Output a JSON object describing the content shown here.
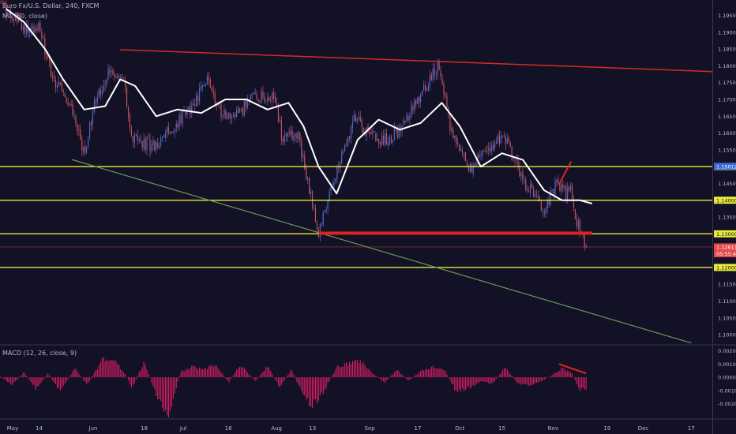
{
  "header": {
    "title": "Euro Fx/U.S. Dollar, 240, FXCM",
    "ma_label": "MA (50, close)",
    "macd_label": "MACD (12, 26, close, 9)"
  },
  "colors": {
    "background": "#131126",
    "candle_up": "#4f6cc7",
    "candle_down": "#c2535e",
    "ma_line": "#ffffff",
    "resistance_trendline": "#d42a2a",
    "support_trendline": "#6a9a53",
    "horizontal_levels": "#e8ea3a",
    "breakdown_zone": "#e0231f",
    "macd_histogram": "#d81f63",
    "price_marker": "#e64a4a",
    "axis_text": "#b7b9c6"
  },
  "chart_data": [
    {
      "type": "candlestick",
      "title": "Euro Fx/U.S. Dollar, 240, FXCM",
      "indicator": "MA (50, close)",
      "x_ticks": [
        "May",
        "14",
        "Jun",
        "18",
        "Jul",
        "16",
        "Aug",
        "13",
        "Sep",
        "17",
        "Oct",
        "15",
        "Nov",
        "19",
        "Dec",
        "17"
      ],
      "x_range": [
        "2018-05-01",
        "2018-12-24"
      ],
      "ylim": [
        1.0972,
        1.1996
      ],
      "y_ticks": [
        1.195,
        1.19,
        1.185,
        1.18,
        1.175,
        1.17,
        1.165,
        1.16,
        1.155,
        1.15,
        1.145,
        1.14,
        1.135,
        1.13,
        1.125,
        1.12,
        1.115,
        1.11,
        1.105,
        1.1
      ],
      "y_tick_labels": [
        "1.19500",
        "1.19000",
        "1.18500",
        "1.18000",
        "1.17500",
        "1.17000",
        "1.16500",
        "1.16000",
        "1.15500",
        "1.15000",
        "1.14500",
        "1.14000",
        "1.13500",
        "1.13000",
        "1.12500",
        "1.12000",
        "1.11500",
        "1.11000",
        "1.10500",
        "1.10000"
      ],
      "price_path": [
        [
          "2018-05-01",
          1.199
        ],
        [
          "2018-05-08",
          1.192
        ],
        [
          "2018-05-14",
          1.191
        ],
        [
          "2018-05-18",
          1.178
        ],
        [
          "2018-05-25",
          1.166
        ],
        [
          "2018-05-29",
          1.154
        ],
        [
          "2018-06-01",
          1.167
        ],
        [
          "2018-06-06",
          1.178
        ],
        [
          "2018-06-11",
          1.177
        ],
        [
          "2018-06-14",
          1.158
        ],
        [
          "2018-06-21",
          1.156
        ],
        [
          "2018-06-28",
          1.162
        ],
        [
          "2018-07-03",
          1.167
        ],
        [
          "2018-07-09",
          1.175
        ],
        [
          "2018-07-13",
          1.167
        ],
        [
          "2018-07-18",
          1.164
        ],
        [
          "2018-07-24",
          1.171
        ],
        [
          "2018-07-31",
          1.171
        ],
        [
          "2018-08-03",
          1.158
        ],
        [
          "2018-08-08",
          1.16
        ],
        [
          "2018-08-13",
          1.139
        ],
        [
          "2018-08-15",
          1.131
        ],
        [
          "2018-08-20",
          1.146
        ],
        [
          "2018-08-27",
          1.164
        ],
        [
          "2018-09-04",
          1.157
        ],
        [
          "2018-09-10",
          1.16
        ],
        [
          "2018-09-17",
          1.17
        ],
        [
          "2018-09-24",
          1.18
        ],
        [
          "2018-09-28",
          1.161
        ],
        [
          "2018-10-04",
          1.149
        ],
        [
          "2018-10-11",
          1.156
        ],
        [
          "2018-10-16",
          1.159
        ],
        [
          "2018-10-22",
          1.146
        ],
        [
          "2018-10-29",
          1.137
        ],
        [
          "2018-11-02",
          1.145
        ],
        [
          "2018-11-05",
          1.142
        ],
        [
          "2018-11-07",
          1.143
        ],
        [
          "2018-11-09",
          1.133
        ],
        [
          "2018-11-12",
          1.1261
        ]
      ],
      "moving_average_50": [
        [
          "2018-05-03",
          1.197
        ],
        [
          "2018-05-09",
          1.193
        ],
        [
          "2018-05-16",
          1.185
        ],
        [
          "2018-05-22",
          1.176
        ],
        [
          "2018-05-29",
          1.167
        ],
        [
          "2018-06-05",
          1.168
        ],
        [
          "2018-06-10",
          1.176
        ],
        [
          "2018-06-15",
          1.174
        ],
        [
          "2018-06-22",
          1.165
        ],
        [
          "2018-06-29",
          1.167
        ],
        [
          "2018-07-07",
          1.166
        ],
        [
          "2018-07-15",
          1.17
        ],
        [
          "2018-07-22",
          1.17
        ],
        [
          "2018-07-29",
          1.167
        ],
        [
          "2018-08-05",
          1.169
        ],
        [
          "2018-08-10",
          1.162
        ],
        [
          "2018-08-15",
          1.15
        ],
        [
          "2018-08-21",
          1.142
        ],
        [
          "2018-08-28",
          1.158
        ],
        [
          "2018-09-04",
          1.164
        ],
        [
          "2018-09-11",
          1.161
        ],
        [
          "2018-09-18",
          1.163
        ],
        [
          "2018-09-25",
          1.169
        ],
        [
          "2018-10-01",
          1.162
        ],
        [
          "2018-10-08",
          1.15
        ],
        [
          "2018-10-15",
          1.154
        ],
        [
          "2018-10-22",
          1.152
        ],
        [
          "2018-10-29",
          1.143
        ],
        [
          "2018-11-04",
          1.14
        ],
        [
          "2018-11-10",
          1.14
        ],
        [
          "2018-11-14",
          1.139
        ]
      ],
      "horizontal_levels": [
        1.15,
        1.14,
        1.13,
        1.12
      ],
      "level_labels": [
        "1.15000",
        "1.14000",
        "1.13000",
        "1.12000"
      ],
      "trendlines": [
        {
          "name": "resistance",
          "points": [
            [
              "2018-06-10",
              1.1848
            ],
            [
              "2018-12-24",
              1.1783
            ]
          ]
        },
        {
          "name": "support",
          "points": [
            [
              "2018-05-25",
              1.1521
            ],
            [
              "2018-12-17",
              1.0975
            ]
          ]
        }
      ],
      "breakdown_zone": {
        "from": "2018-08-15",
        "to": "2018-11-14",
        "price": 1.1302
      },
      "divergence_line": {
        "points": [
          [
            "2018-11-03",
            1.1447
          ],
          [
            "2018-11-07",
            1.1515
          ]
        ]
      },
      "markers": [
        {
          "label": "1.15012",
          "price": 1.1501,
          "color": "#3b6ad6"
        },
        {
          "label": "1.12611",
          "price": 1.1261,
          "color": "#e64a4a"
        },
        {
          "label": "05:55:43",
          "price": 1.1241,
          "color": "#e64a4a"
        }
      ],
      "current_price": 1.12611
    },
    {
      "type": "bar",
      "title": "MACD (12, 26, close, 9)",
      "ylim": [
        -0.0031,
        0.0024
      ],
      "y_ticks": [
        0.002,
        0.001,
        0,
        -0.001,
        -0.002
      ],
      "y_tick_labels": [
        "0.0020",
        "0.0010",
        "0.0000",
        "-0.0010",
        "-0.0020"
      ],
      "histogram_path": [
        [
          "2018-05-01",
          0.0001
        ],
        [
          "2018-05-05",
          -0.0006
        ],
        [
          "2018-05-09",
          0.0004
        ],
        [
          "2018-05-13",
          -0.0009
        ],
        [
          "2018-05-17",
          0.0003
        ],
        [
          "2018-05-21",
          -0.0011
        ],
        [
          "2018-05-26",
          0.0007
        ],
        [
          "2018-05-30",
          -0.0006
        ],
        [
          "2018-06-04",
          0.0013
        ],
        [
          "2018-06-07",
          0.0016
        ],
        [
          "2018-06-11",
          0.0005
        ],
        [
          "2018-06-14",
          -0.0008
        ],
        [
          "2018-06-18",
          0.0012
        ],
        [
          "2018-06-22",
          -0.0014
        ],
        [
          "2018-06-26",
          -0.003
        ],
        [
          "2018-06-30",
          0.0004
        ],
        [
          "2018-07-04",
          0.0008
        ],
        [
          "2018-07-08",
          0.0006
        ],
        [
          "2018-07-12",
          0.001
        ],
        [
          "2018-07-16",
          -0.0004
        ],
        [
          "2018-07-20",
          0.001
        ],
        [
          "2018-07-25",
          -0.0003
        ],
        [
          "2018-07-29",
          0.0009
        ],
        [
          "2018-08-02",
          -0.0008
        ],
        [
          "2018-08-06",
          0.0006
        ],
        [
          "2018-08-10",
          -0.0015
        ],
        [
          "2018-08-13",
          -0.0022
        ],
        [
          "2018-08-17",
          -0.001
        ],
        [
          "2018-08-21",
          0.0008
        ],
        [
          "2018-08-25",
          0.0011
        ],
        [
          "2018-08-29",
          0.0013
        ],
        [
          "2018-09-02",
          0.0003
        ],
        [
          "2018-09-06",
          -0.0004
        ],
        [
          "2018-09-10",
          0.0006
        ],
        [
          "2018-09-14",
          -0.0003
        ],
        [
          "2018-09-18",
          0.0005
        ],
        [
          "2018-09-22",
          0.0008
        ],
        [
          "2018-09-26",
          0.0005
        ],
        [
          "2018-09-30",
          -0.0012
        ],
        [
          "2018-10-04",
          -0.0008
        ],
        [
          "2018-10-08",
          -0.0003
        ],
        [
          "2018-10-12",
          -0.0005
        ],
        [
          "2018-10-16",
          0.0008
        ],
        [
          "2018-10-20",
          -0.0004
        ],
        [
          "2018-10-24",
          -0.0007
        ],
        [
          "2018-10-28",
          -0.0003
        ],
        [
          "2018-11-01",
          0.0002
        ],
        [
          "2018-11-04",
          0.0007
        ],
        [
          "2018-11-07",
          0.0004
        ],
        [
          "2018-11-10",
          -0.001
        ],
        [
          "2018-11-12",
          -0.0009
        ]
      ],
      "divergence_line": {
        "points": [
          [
            "2018-11-03",
            0.001
          ],
          [
            "2018-11-12",
            0.0003
          ]
        ]
      }
    }
  ]
}
